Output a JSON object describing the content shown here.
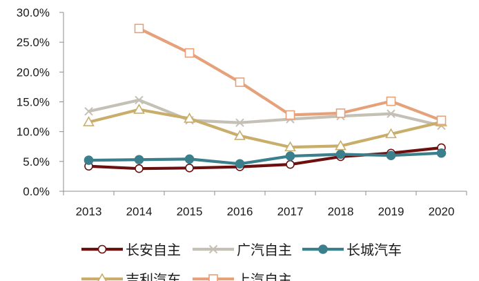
{
  "chart_data": {
    "type": "line",
    "title": "",
    "xlabel": "",
    "ylabel": "",
    "x": [
      "2013",
      "2014",
      "2015",
      "2016",
      "2017",
      "2018",
      "2019",
      "2020"
    ],
    "ylim": [
      0,
      30
    ],
    "yticks": [
      "0.0%",
      "5.0%",
      "10.0%",
      "15.0%",
      "20.0%",
      "25.0%",
      "30.0%"
    ],
    "grid": false,
    "legend_position": "bottom",
    "series": [
      {
        "name": "长安自主",
        "color": "#6b0f0f",
        "marker": "circle-open",
        "values": [
          4.2,
          3.8,
          3.9,
          4.1,
          4.5,
          5.8,
          6.4,
          7.3
        ]
      },
      {
        "name": "广汽自主",
        "color": "#c4c0b5",
        "marker": "x",
        "values": [
          13.4,
          15.3,
          11.9,
          11.5,
          12.1,
          12.6,
          13.0,
          11.0
        ]
      },
      {
        "name": "长城汽车",
        "color": "#3b7f8c",
        "marker": "circle-filled",
        "values": [
          5.2,
          5.3,
          5.4,
          4.6,
          5.9,
          6.2,
          6.0,
          6.4
        ]
      },
      {
        "name": "吉利汽车",
        "color": "#c9ad6a",
        "marker": "triangle-open",
        "values": [
          11.6,
          13.7,
          12.2,
          9.3,
          7.4,
          7.6,
          9.6,
          11.6
        ]
      },
      {
        "name": "上汽自主",
        "color": "#e5a27a",
        "marker": "square-open",
        "values": [
          null,
          27.3,
          23.2,
          18.3,
          12.8,
          13.1,
          15.1,
          11.9
        ]
      }
    ]
  }
}
